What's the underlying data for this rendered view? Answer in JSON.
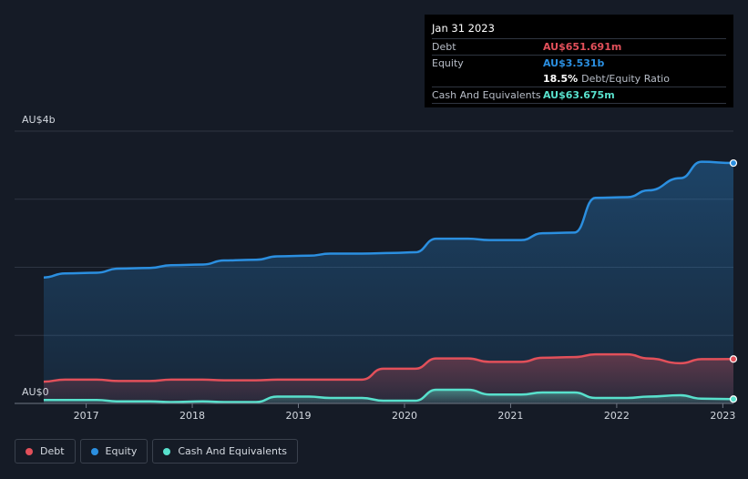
{
  "tooltip": {
    "date": "Jan 31 2023",
    "debt_label": "Debt",
    "debt_value": "AU$651.691m",
    "equity_label": "Equity",
    "equity_value": "AU$3.531b",
    "ratio_value": "18.5%",
    "ratio_label": "Debt/Equity Ratio",
    "cash_label": "Cash And Equivalents",
    "cash_value": "AU$63.675m"
  },
  "legend": [
    {
      "label": "Debt",
      "color": "#e2505a"
    },
    {
      "label": "Equity",
      "color": "#2b8fe0"
    },
    {
      "label": "Cash And Equivalents",
      "color": "#58e0cc"
    }
  ],
  "colors": {
    "debt": "#e2505a",
    "equity": "#2b8fe0",
    "cash": "#58e0cc"
  },
  "chart_data": {
    "type": "area",
    "title": "",
    "ylabel": "",
    "y_tick_labels": [
      {
        "value": 4,
        "label": "AU$4b"
      },
      {
        "value": 0,
        "label": "AU$0"
      }
    ],
    "ylim": [
      0,
      4
    ],
    "xlim": [
      2016.6,
      2023.1
    ],
    "x_ticks": [
      {
        "value": 2017,
        "label": "2017"
      },
      {
        "value": 2018,
        "label": "2018"
      },
      {
        "value": 2019,
        "label": "2019"
      },
      {
        "value": 2020,
        "label": "2020"
      },
      {
        "value": 2021,
        "label": "2021"
      },
      {
        "value": 2022,
        "label": "2022"
      },
      {
        "value": 2023,
        "label": "2023"
      }
    ],
    "series": [
      {
        "name": "Equity",
        "key": "equity",
        "values": [
          [
            2016.6,
            1.85
          ],
          [
            2016.8,
            1.91
          ],
          [
            2017.1,
            1.92
          ],
          [
            2017.3,
            1.98
          ],
          [
            2017.6,
            1.99
          ],
          [
            2017.8,
            2.03
          ],
          [
            2018.1,
            2.04
          ],
          [
            2018.3,
            2.1
          ],
          [
            2018.6,
            2.11
          ],
          [
            2018.8,
            2.16
          ],
          [
            2019.1,
            2.17
          ],
          [
            2019.3,
            2.2
          ],
          [
            2019.6,
            2.2
          ],
          [
            2019.9,
            2.21
          ],
          [
            2020.1,
            2.22
          ],
          [
            2020.3,
            2.42
          ],
          [
            2020.6,
            2.42
          ],
          [
            2020.8,
            2.4
          ],
          [
            2021.1,
            2.4
          ],
          [
            2021.3,
            2.5
          ],
          [
            2021.6,
            2.51
          ],
          [
            2021.8,
            3.02
          ],
          [
            2022.1,
            3.03
          ],
          [
            2022.3,
            3.13
          ],
          [
            2022.6,
            3.31
          ],
          [
            2022.8,
            3.55
          ],
          [
            2023.1,
            3.531
          ]
        ]
      },
      {
        "name": "Debt",
        "key": "debt",
        "values": [
          [
            2016.6,
            0.32
          ],
          [
            2016.8,
            0.35
          ],
          [
            2017.1,
            0.35
          ],
          [
            2017.3,
            0.33
          ],
          [
            2017.6,
            0.33
          ],
          [
            2017.8,
            0.35
          ],
          [
            2018.1,
            0.35
          ],
          [
            2018.3,
            0.34
          ],
          [
            2018.6,
            0.34
          ],
          [
            2018.8,
            0.35
          ],
          [
            2019.1,
            0.35
          ],
          [
            2019.3,
            0.35
          ],
          [
            2019.6,
            0.35
          ],
          [
            2019.8,
            0.51
          ],
          [
            2020.1,
            0.51
          ],
          [
            2020.3,
            0.66
          ],
          [
            2020.6,
            0.66
          ],
          [
            2020.8,
            0.61
          ],
          [
            2021.1,
            0.61
          ],
          [
            2021.3,
            0.67
          ],
          [
            2021.6,
            0.68
          ],
          [
            2021.8,
            0.72
          ],
          [
            2022.1,
            0.72
          ],
          [
            2022.3,
            0.66
          ],
          [
            2022.6,
            0.59
          ],
          [
            2022.8,
            0.65
          ],
          [
            2023.1,
            0.651691
          ]
        ]
      },
      {
        "name": "Cash And Equivalents",
        "key": "cash",
        "values": [
          [
            2016.6,
            0.05
          ],
          [
            2016.8,
            0.05
          ],
          [
            2017.1,
            0.05
          ],
          [
            2017.3,
            0.03
          ],
          [
            2017.6,
            0.03
          ],
          [
            2017.8,
            0.02
          ],
          [
            2018.1,
            0.03
          ],
          [
            2018.3,
            0.02
          ],
          [
            2018.6,
            0.02
          ],
          [
            2018.8,
            0.1
          ],
          [
            2019.1,
            0.1
          ],
          [
            2019.3,
            0.08
          ],
          [
            2019.6,
            0.08
          ],
          [
            2019.8,
            0.04
          ],
          [
            2020.1,
            0.04
          ],
          [
            2020.3,
            0.2
          ],
          [
            2020.6,
            0.2
          ],
          [
            2020.8,
            0.13
          ],
          [
            2021.1,
            0.13
          ],
          [
            2021.3,
            0.16
          ],
          [
            2021.6,
            0.16
          ],
          [
            2021.8,
            0.08
          ],
          [
            2022.1,
            0.08
          ],
          [
            2022.3,
            0.1
          ],
          [
            2022.6,
            0.12
          ],
          [
            2022.8,
            0.07
          ],
          [
            2023.1,
            0.063675
          ]
        ]
      }
    ]
  }
}
